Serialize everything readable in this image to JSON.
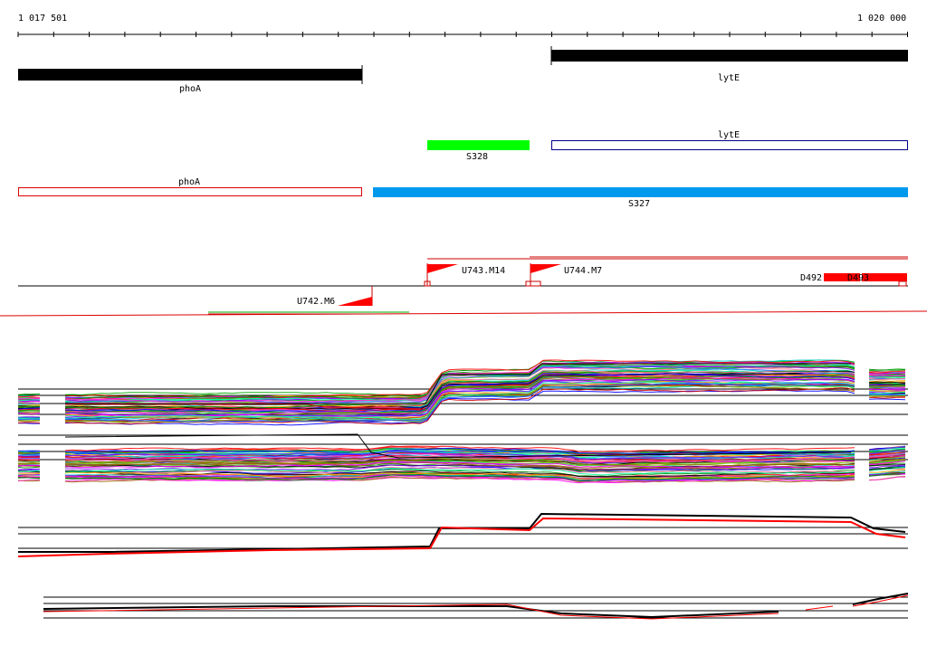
{
  "ruler": {
    "start_label": "1 017 501",
    "end_label": "1 020 000"
  },
  "genes": [
    {
      "id": "phoA-black",
      "label": "phoA",
      "color": "#000000"
    },
    {
      "id": "lytE-black",
      "label": "lytE",
      "color": "#000000"
    }
  ],
  "annotations": [
    {
      "id": "S328",
      "label": "S328",
      "color": "#00ff00"
    },
    {
      "id": "lytE-outline",
      "label": "lytE",
      "color": "#00008b"
    },
    {
      "id": "phoA-outline",
      "label": "phoA",
      "color": "#dd0000"
    },
    {
      "id": "S327",
      "label": "S327",
      "color": "#0099ee"
    }
  ],
  "features": [
    {
      "label": "U743.M14"
    },
    {
      "label": "U744.M7"
    },
    {
      "label": "U742.M6"
    },
    {
      "label": "D492"
    },
    {
      "label": "D493"
    }
  ],
  "colors": {
    "marker": "#ff0000",
    "track_palette": [
      "#ff0000",
      "#00aa00",
      "#0000ff",
      "#ff00ff",
      "#00cccc",
      "#ffaa00",
      "#8800ff",
      "#008800",
      "#ff6699",
      "#996600",
      "#00ff99",
      "#3366ff",
      "#cc0000",
      "#66cc00",
      "#ff33cc",
      "#000000"
    ]
  }
}
